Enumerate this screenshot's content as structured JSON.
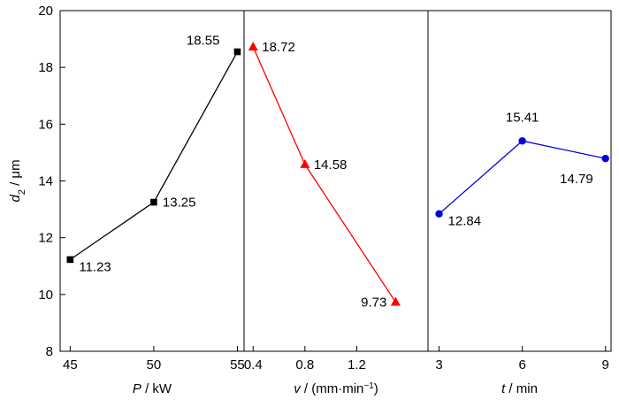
{
  "chart_data": {
    "type": "line",
    "grid": false,
    "y_axis": {
      "label_main": "d",
      "label_sub": "2",
      "label_unit": " / μm",
      "range": [
        8,
        20
      ],
      "ticks": [
        8,
        10,
        12,
        14,
        16,
        18,
        20
      ]
    },
    "panels": [
      {
        "name": "panel-power",
        "xlabel_var": "P",
        "xlabel_unit": " / kW",
        "xlabel_sup": "",
        "xlabel_close": "",
        "xrange": [
          44.4,
          55.4
        ],
        "ticks": [
          45,
          50,
          55
        ],
        "tick_labels": [
          "45",
          "50",
          "55"
        ],
        "color": "#000000",
        "marker": "square",
        "points": [
          {
            "x": 45,
            "y": 11.23,
            "label": "11.23",
            "label_pos": "right-below"
          },
          {
            "x": 50,
            "y": 13.25,
            "label": "13.25",
            "label_pos": "right"
          },
          {
            "x": 55,
            "y": 18.55,
            "label": "18.55",
            "label_pos": "left-above"
          }
        ]
      },
      {
        "name": "panel-speed",
        "xlabel_var": "v",
        "xlabel_unit": " / (mm·min",
        "xlabel_sup": "−1",
        "xlabel_close": ")",
        "xrange": [
          0.33,
          1.75
        ],
        "ticks": [
          0.4,
          0.8,
          1.2
        ],
        "tick_labels": [
          "0.4",
          "0.8",
          "1.2"
        ],
        "color": "#ff0000",
        "marker": "triangle",
        "points": [
          {
            "x": 0.4,
            "y": 18.72,
            "label": "18.72",
            "label_pos": "right"
          },
          {
            "x": 0.8,
            "y": 14.58,
            "label": "14.58",
            "label_pos": "right"
          },
          {
            "x": 1.5,
            "y": 9.73,
            "label": "9.73",
            "label_pos": "left"
          }
        ]
      },
      {
        "name": "panel-time",
        "xlabel_var": "t",
        "xlabel_unit": " / min",
        "xlabel_sup": "",
        "xlabel_close": "",
        "xrange": [
          2.6,
          9.2
        ],
        "ticks": [
          3,
          6,
          9
        ],
        "tick_labels": [
          "3",
          "6",
          "9"
        ],
        "color": "#0000dd",
        "marker": "circle",
        "points": [
          {
            "x": 3,
            "y": 12.84,
            "label": "12.84",
            "label_pos": "right-below"
          },
          {
            "x": 6,
            "y": 15.41,
            "label": "15.41",
            "label_pos": "above"
          },
          {
            "x": 9,
            "y": 14.79,
            "label": "14.79",
            "label_pos": "left-below"
          }
        ]
      }
    ]
  }
}
